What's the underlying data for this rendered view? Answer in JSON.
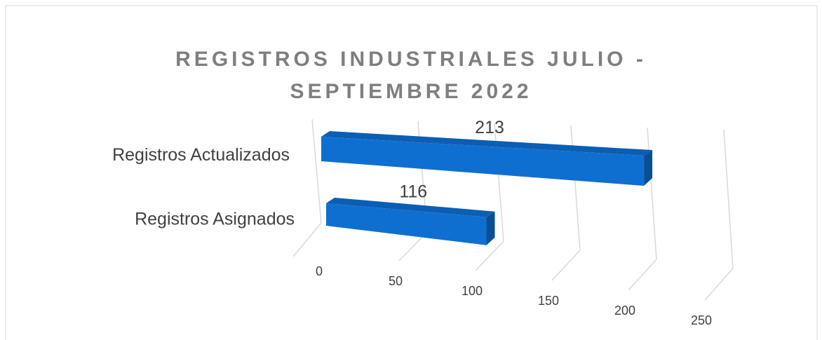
{
  "chart_data": {
    "type": "bar3d_horizontal",
    "title": "REGISTROS INDUSTRIALES JULIO - SEPTIEMBRE 2022",
    "categories": [
      "Registros Actualizados",
      "Registros Asignados"
    ],
    "values": [
      213,
      116
    ],
    "color": "#0f6fd1",
    "xlim": [
      0,
      250
    ],
    "xticks": [
      0,
      50,
      100,
      150,
      200,
      250
    ],
    "grid": true
  }
}
